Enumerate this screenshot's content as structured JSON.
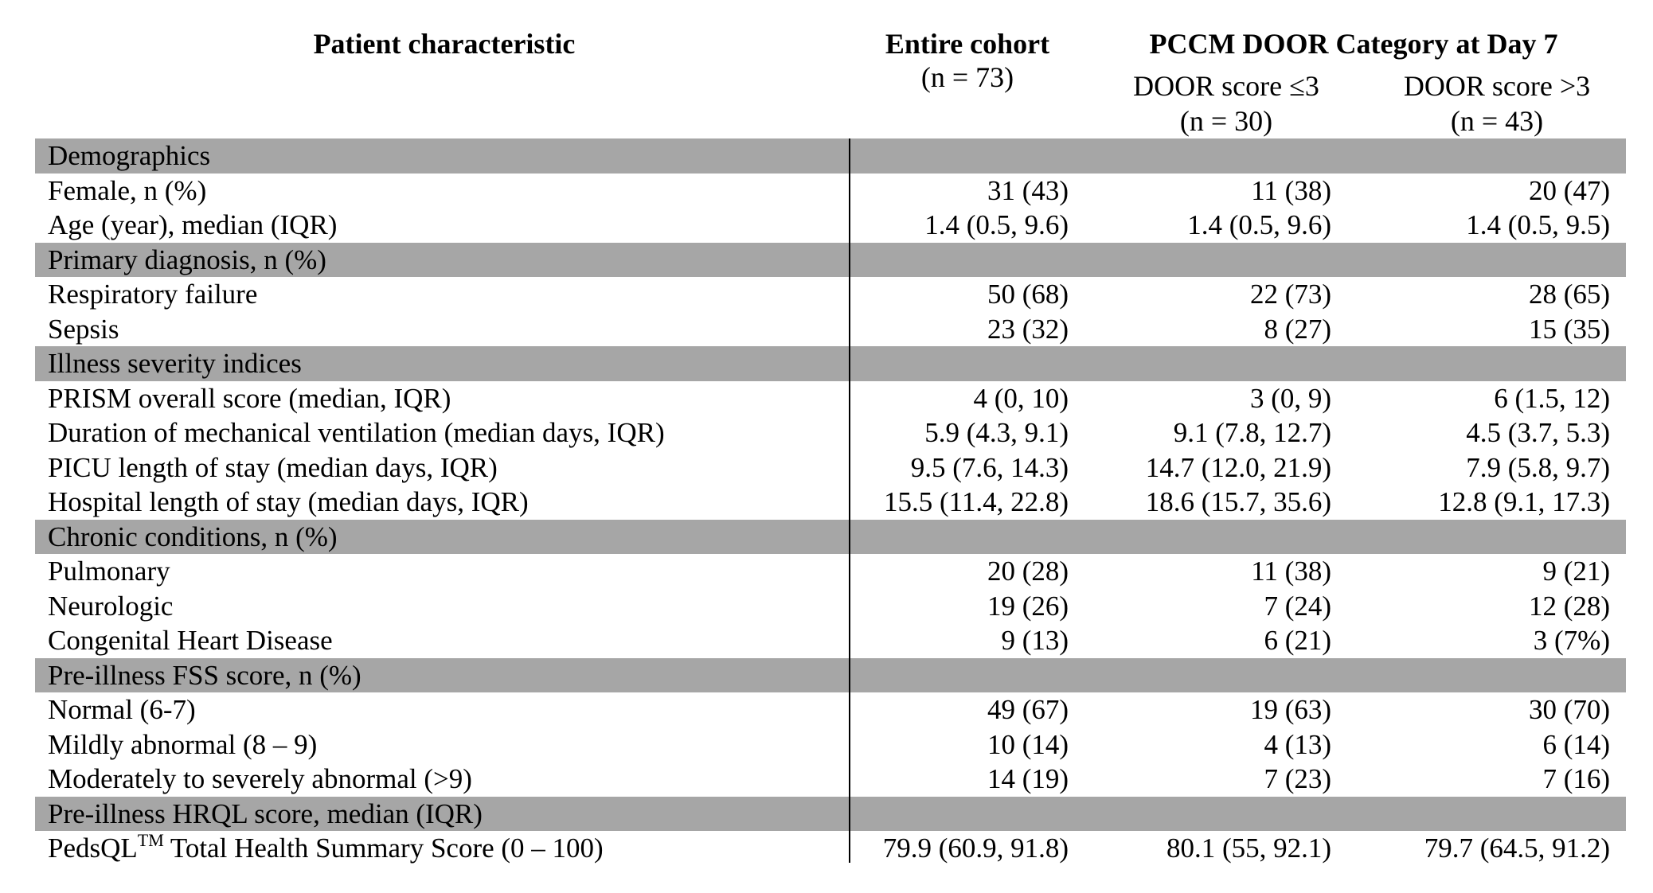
{
  "header": {
    "col_characteristic": "Patient characteristic",
    "col_cohort": "Entire cohort",
    "col_cohort_n": "(n = 73)",
    "group_title": "PCCM DOOR Category at Day 7",
    "col_low": "DOOR score ≤3",
    "col_low_n": "(n = 30)",
    "col_high": "DOOR score >3",
    "col_high_n": "(n = 43)"
  },
  "rows": [
    {
      "section": true,
      "label": "Demographics"
    },
    {
      "label": "Female, n (%)",
      "cohort": "31 (43)",
      "low": "11 (38)",
      "high": "20 (47)"
    },
    {
      "label": "Age (year), median (IQR)",
      "cohort": "1.4 (0.5, 9.6)",
      "low": "1.4 (0.5, 9.6)",
      "high": "1.4 (0.5, 9.5)"
    },
    {
      "section": true,
      "label": "Primary diagnosis, n (%)"
    },
    {
      "label": "Respiratory failure",
      "cohort": "50 (68)",
      "low": "22 (73)",
      "high": "28 (65)"
    },
    {
      "label": "Sepsis",
      "cohort": "23 (32)",
      "low": "8 (27)",
      "high": "15 (35)"
    },
    {
      "section": true,
      "label": "Illness severity indices"
    },
    {
      "label": "PRISM overall score (median, IQR)",
      "cohort": "4 (0, 10)",
      "low": "3 (0, 9)",
      "high": "6 (1.5, 12)"
    },
    {
      "label": "Duration of mechanical ventilation (median days, IQR)",
      "cohort": "5.9 (4.3, 9.1)",
      "low": "9.1 (7.8, 12.7)",
      "high": "4.5 (3.7, 5.3)"
    },
    {
      "label": "PICU length of stay (median days, IQR)",
      "cohort": "9.5 (7.6, 14.3)",
      "low": "14.7 (12.0, 21.9)",
      "high": "7.9 (5.8, 9.7)"
    },
    {
      "label": "Hospital length of stay (median days, IQR)",
      "cohort": "15.5 (11.4, 22.8)",
      "low": "18.6 (15.7, 35.6)",
      "high": "12.8 (9.1, 17.3)"
    },
    {
      "section": true,
      "label": "Chronic conditions, n (%)"
    },
    {
      "label": "Pulmonary",
      "cohort": "20 (28)",
      "low": "11 (38)",
      "high": "9 (21)"
    },
    {
      "label": "Neurologic",
      "cohort": "19 (26)",
      "low": "7 (24)",
      "high": "12 (28)"
    },
    {
      "label": "Congenital Heart Disease",
      "cohort": "9 (13)",
      "low": "6 (21)",
      "high": "3 (7%)"
    },
    {
      "section": true,
      "label": "Pre-illness FSS score, n (%)"
    },
    {
      "label": "Normal (6-7)",
      "cohort": "49 (67)",
      "low": "19 (63)",
      "high": "30 (70)"
    },
    {
      "label": "Mildly abnormal (8 – 9)",
      "cohort": "10 (14)",
      "low": "4 (13)",
      "high": "6 (14)"
    },
    {
      "label": "Moderately to severely abnormal (>9)",
      "cohort": "14 (19)",
      "low": "7 (23)",
      "high": "7 (16)"
    },
    {
      "section": true,
      "label": "Pre-illness HRQL score, median (IQR)"
    },
    {
      "label": "PedsQL",
      "label_sup": "TM",
      "label_rest": " Total Health Summary Score (0 – 100)",
      "cohort": "79.9 (60.9, 91.8)",
      "low": "80.1 (55, 92.1)",
      "high": "79.7 (64.5, 91.2)"
    }
  ]
}
